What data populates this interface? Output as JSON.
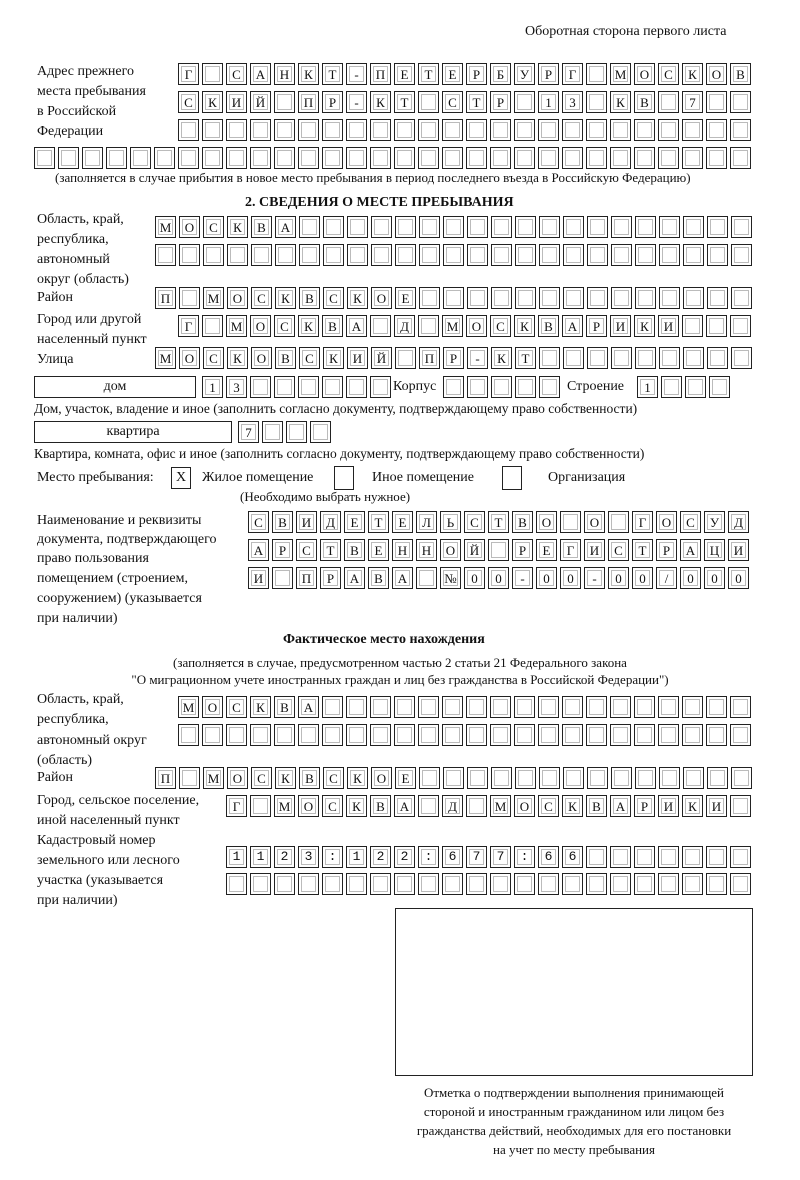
{
  "header": {
    "page_side": "Оборотная сторона первого листа"
  },
  "previous_address": {
    "label": [
      "Адрес прежнего",
      "места пребывания",
      "в Российской",
      "Федерации"
    ],
    "rows": [
      "Г САНКТ-ПЕТЕРБУРГ МОСКОВ",
      "СКИЙ ПР-КТ СТР 13 КВ 7",
      "",
      ""
    ],
    "note": "(заполняется в случае прибытия в новое место пребывания в период последнего въезда в Российскую Федерацию)"
  },
  "section2": {
    "title": "2. СВЕДЕНИЯ О МЕСТЕ ПРЕБЫВАНИЯ",
    "region_label": [
      "Область, край,",
      "республика,",
      "автономный",
      "округ (область)"
    ],
    "region_rows": [
      "МОСКВА",
      ""
    ],
    "district_label": "Район",
    "district_row": "П МОСКВСКОЕ",
    "city_label": [
      "Город или другой",
      "населенный пункт"
    ],
    "city_row": "Г МОСКВА Д МОСКВАРИКИ",
    "street_label": "Улица",
    "street_row": "МОСКОВСКИЙ ПР-КТ",
    "house_type": "дом",
    "house_number": "13",
    "korpus_label": "Корпус",
    "korpus_value": "",
    "building_label": "Строение",
    "building_value": "1",
    "house_note": "Дом, участок, владение и иное (заполнить согласно документу, подтверждающему право собственности)",
    "apartment_type": "квартира",
    "apartment_number": "7",
    "apartment_note": "Квартира, комната, офис и иное (заполнить согласно документу, подтверждающему право собственности)",
    "stay_place_label": "Место пребывания:",
    "stay_options": [
      {
        "label": "Жилое помещение",
        "mark": "X"
      },
      {
        "label": "Иное помещение",
        "mark": ""
      },
      {
        "label": "Организация",
        "mark": ""
      }
    ],
    "stay_hint": "(Необходимо выбрать нужное)",
    "document_label": [
      "Наименование и реквизиты",
      "документа, подтверждающего",
      "право пользования",
      "помещением (строением,",
      "сооружением) (указывается",
      "при наличии)"
    ],
    "document_rows": [
      "СВИДЕТЕЛЬСТВО О ГОСУД",
      "АРСТВЕННОЙ РЕГИСТРАЦИ",
      "И ПРАВА №00-00-00/000"
    ]
  },
  "actual_location": {
    "title": "Фактическое место нахождения",
    "subtitle": [
      "(заполняется в случае, предусмотренном частью 2 статьи 21 Федерального закона",
      "\"О миграционном учете иностранных граждан и лиц без гражданства в Российской Федерации\")"
    ],
    "region_label": [
      "Область, край,",
      "республика,",
      "автономный округ",
      "(область)"
    ],
    "region_rows": [
      "МОСКВА",
      ""
    ],
    "district_label": "Район",
    "district_row": "П МОСКВСКОЕ",
    "city_label": [
      "Город, сельское поселение,",
      "иной населенный пункт"
    ],
    "city_row": "Г МОСКВА Д МОСКВАРИКИ",
    "cadastral_label": [
      "Кадастровый номер",
      "земельного или лесного",
      "участка (указывается",
      "при наличии)"
    ],
    "cadastral_rows": [
      "1123:122:677:66",
      ""
    ]
  },
  "confirmation": {
    "caption": [
      "Отметка о подтверждении выполнения принимающей",
      "стороной и иностранным гражданином или лицом без",
      "гражданства действий, необходимых для его постановки",
      "на учет по месту пребывания"
    ]
  }
}
